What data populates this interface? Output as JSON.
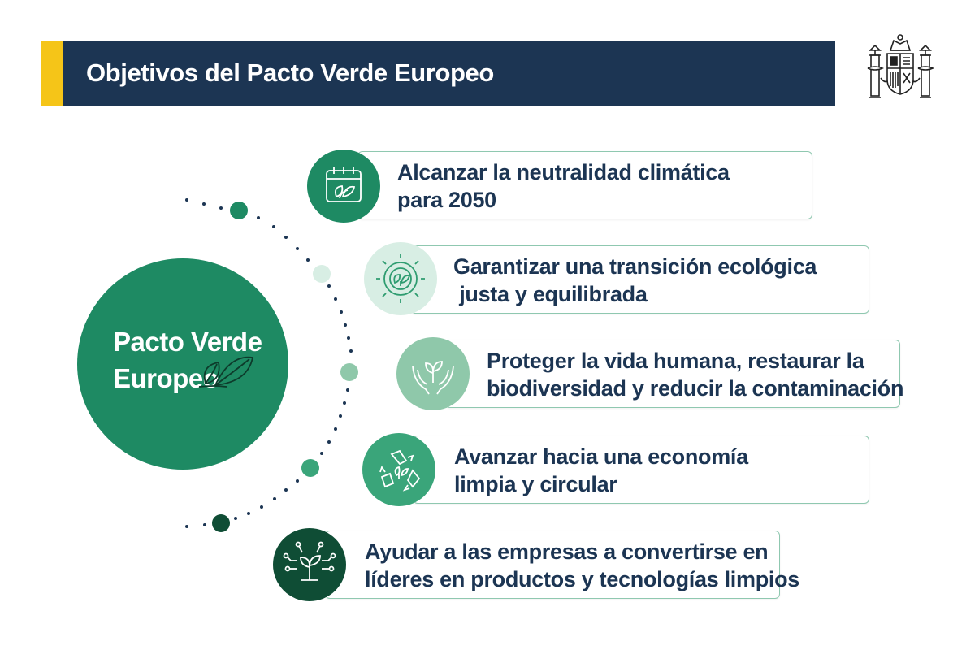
{
  "header": {
    "title": "Objetivos del Pacto Verde Europeo"
  },
  "hub": {
    "line1": "Pacto Verde",
    "line2": "Europeo"
  },
  "objectives": [
    {
      "line1": "Alcanzar la neutralidad climática",
      "line2": "para 2050",
      "icon": "calendar-leaf-icon"
    },
    {
      "line1": "Garantizar una transición ecológica",
      "line2": " justa y equilibrada",
      "icon": "gear-leaf-icon"
    },
    {
      "line1": "Proteger la vida humana, restaurar la",
      "line2": "biodiversidad y reducir la contaminación",
      "icon": "hands-sprout-icon"
    },
    {
      "line1": "Avanzar hacia una economía",
      "line2": "limpia y circular",
      "icon": "recycle-icon"
    },
    {
      "line1": "Ayudar a las empresas a convertirse en",
      "line2": "líderes en productos y tecnologías limpios",
      "icon": "circuit-sprout-icon"
    }
  ],
  "colors": {
    "header_bg": "#1c3553",
    "header_accent": "#f5c518",
    "hub": "#1e8a63",
    "card_border": "#8fc8b0",
    "text_navy": "#1c3553",
    "bubble_1": "#1e8a63",
    "bubble_2": "#d8eee4",
    "bubble_3": "#8fc8aa",
    "bubble_4": "#3aa57a",
    "bubble_5": "#0f4d35"
  }
}
